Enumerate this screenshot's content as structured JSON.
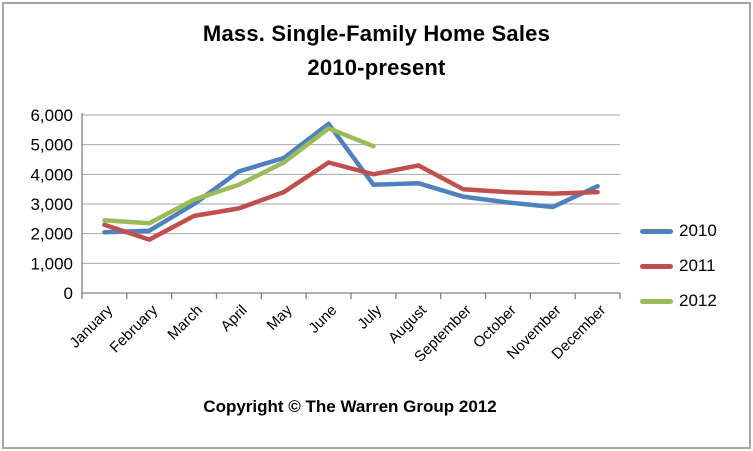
{
  "title": {
    "line1": "Mass. Single-Family Home Sales",
    "line2": "2010-present"
  },
  "footer": {
    "copyright": "Copyright © The Warren Group 2012"
  },
  "chart_data": {
    "type": "line",
    "title": "Mass. Single-Family Home Sales 2010-present",
    "categories": [
      "January",
      "February",
      "March",
      "April",
      "May",
      "June",
      "July",
      "August",
      "September",
      "October",
      "November",
      "December"
    ],
    "series": [
      {
        "name": "2010",
        "color": "#4F81BD",
        "values": [
          2050,
          2100,
          3000,
          4100,
          4550,
          5700,
          3650,
          3700,
          3250,
          3050,
          2900,
          3600
        ]
      },
      {
        "name": "2011",
        "color": "#C0504D",
        "values": [
          2300,
          1800,
          2600,
          2850,
          3400,
          4400,
          4000,
          4300,
          3500,
          3400,
          3350,
          3400
        ]
      },
      {
        "name": "2012",
        "color": "#9BBB59",
        "values": [
          2450,
          2350,
          3150,
          3650,
          4400,
          5550,
          4950
        ]
      }
    ],
    "xlabel": "",
    "ylabel": "",
    "ylim": [
      0,
      6000
    ],
    "ytick_step": 1000,
    "ytick_labels": [
      "0",
      "1,000",
      "2,000",
      "3,000",
      "4,000",
      "5,000",
      "6,000"
    ],
    "grid": true,
    "legend_position": "right"
  }
}
